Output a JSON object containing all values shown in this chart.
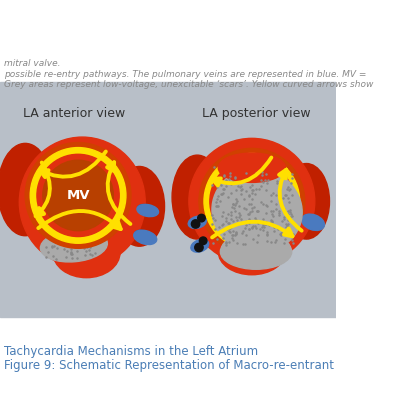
{
  "title_line1": "Figure 9: Schematic Representation of Macro-re-entrant",
  "title_line2": "Tachycardia Mechanisms in the Left Atrium",
  "title_color": "#4a7db5",
  "title_fontsize": 8.5,
  "bg_color": "#b8bfc8",
  "header_bg": "#ffffff",
  "footer_bg": "#ffffff",
  "left_label": "LA anterior view",
  "right_label": "LA posterior view",
  "label_color": "#333333",
  "label_fontsize": 9,
  "footnote_lines": [
    "Grey areas represent low-voltage, unexcitable ‘scars’. Yellow curved arrows show",
    "possible re-entry pathways. The pulmonary veins are represented in blue. MV =",
    "mitral valve."
  ],
  "footnote_color": "#888888",
  "footnote_fontsize": 6.5,
  "red_bright": "#e03010",
  "red_mid": "#c02000",
  "red_dark": "#8b1000",
  "orange_ring": "#d04000",
  "yellow": "#f0d000",
  "yellow_bright": "#ffe000",
  "mv_brown": "#b84000",
  "blue_pv": "#4a7abf",
  "blue_pv_dark": "#2a5a9f",
  "grey_scar": "#aaaaaa",
  "grey_scar_dark": "#888888",
  "white": "#ffffff",
  "black": "#111111"
}
